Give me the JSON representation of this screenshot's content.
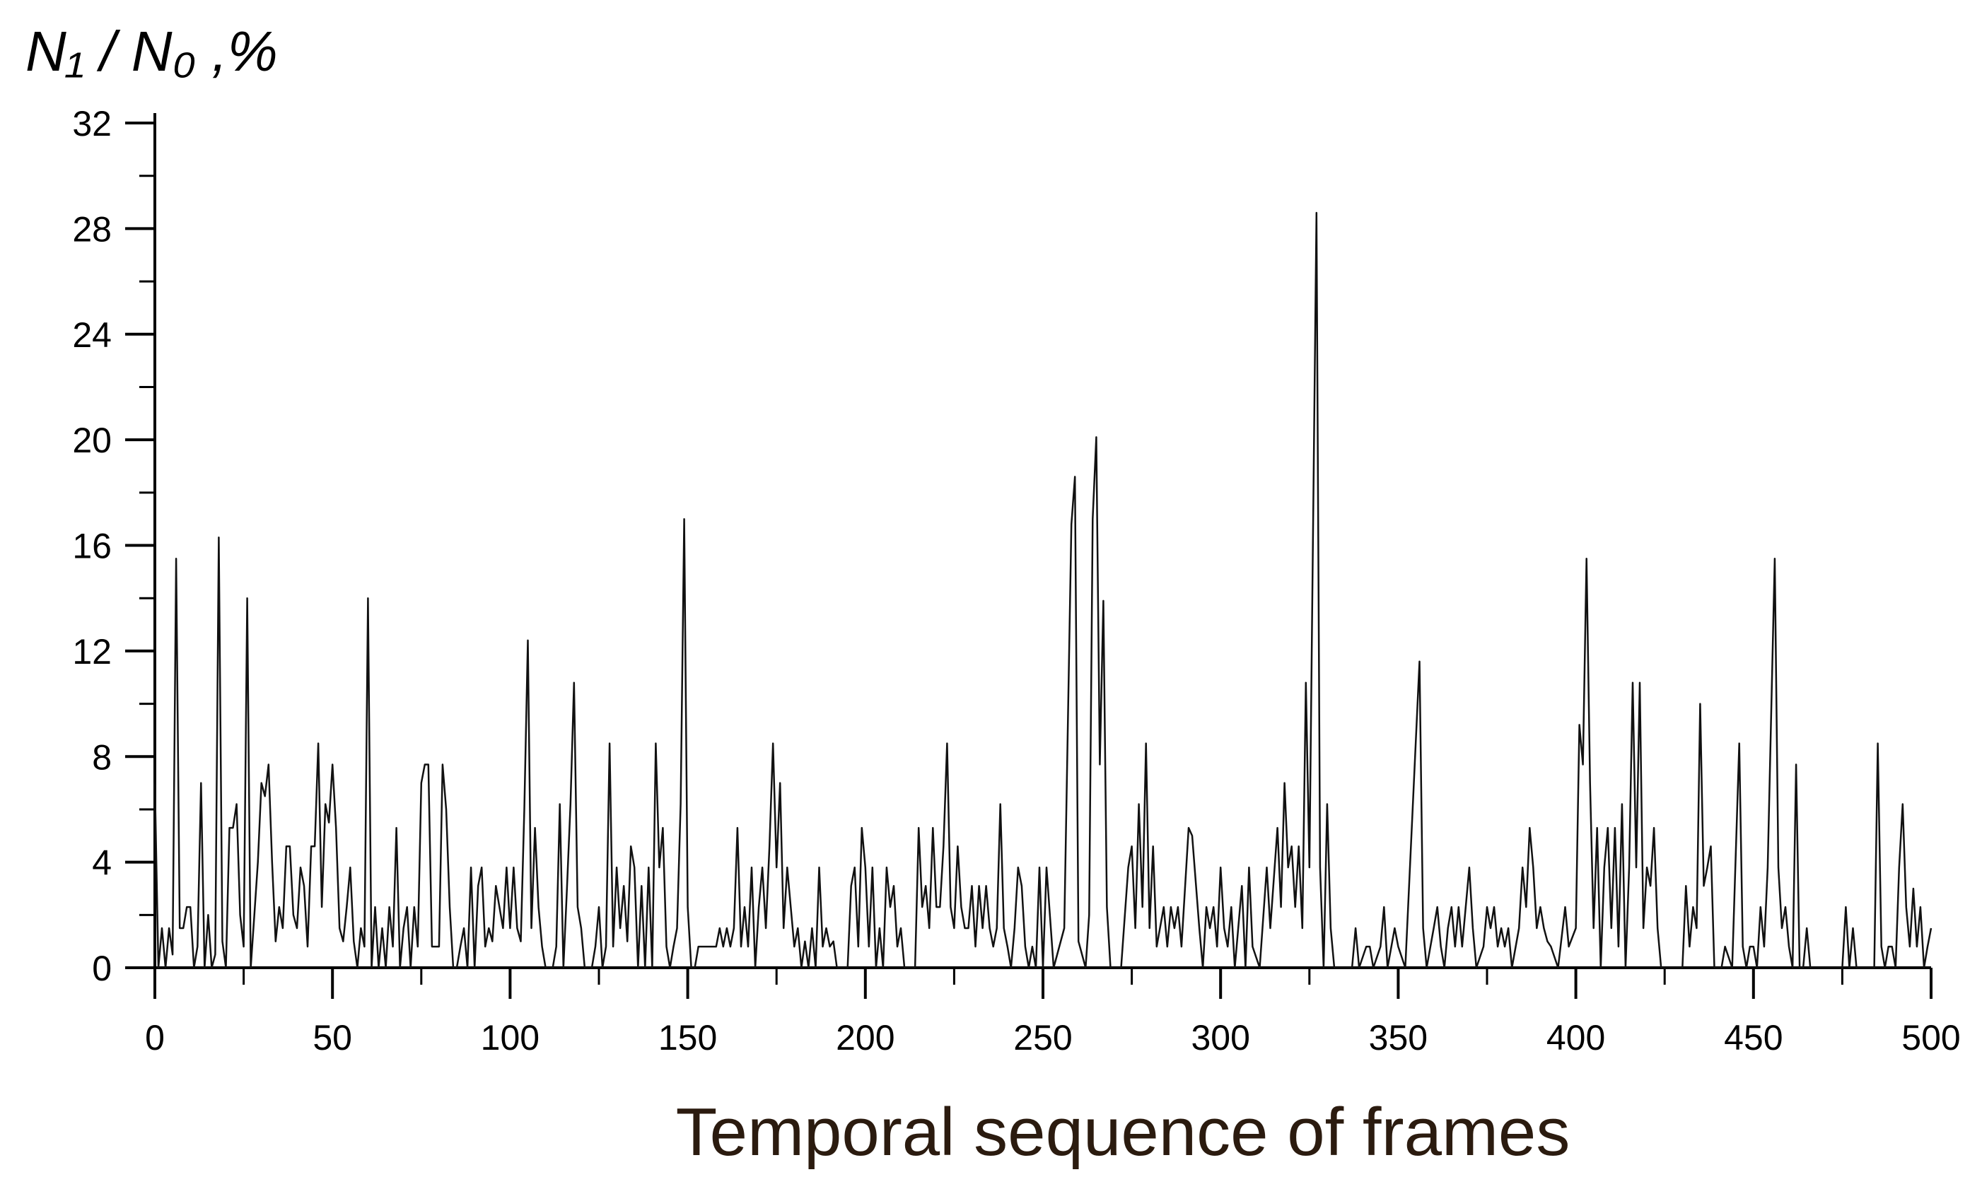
{
  "chart_data": {
    "type": "line",
    "ylabel": "N₁ / N₀ ,%",
    "xlabel": "Temporal sequence of frames",
    "color": "#111111",
    "xlim": [
      0,
      500
    ],
    "xticks": [
      0,
      50,
      100,
      150,
      200,
      250,
      300,
      350,
      400,
      450,
      500
    ],
    "xminorticks": [
      25,
      75,
      125,
      175,
      225,
      275,
      325,
      375,
      425,
      475
    ],
    "ylim": [
      0,
      32
    ],
    "yticks": [
      0,
      4,
      8,
      12,
      16,
      20,
      24,
      28,
      32
    ],
    "yminorticks": [
      2,
      6,
      10,
      14,
      18,
      22,
      26,
      30
    ],
    "x": [
      0,
      1,
      2,
      3,
      4,
      5,
      6,
      7,
      8,
      9,
      10,
      11,
      12,
      13,
      14,
      15,
      16,
      17,
      18,
      19,
      20,
      21,
      22,
      23,
      24,
      25,
      26,
      27,
      28,
      29,
      30,
      31,
      32,
      33,
      34,
      35,
      36,
      37,
      38,
      39,
      40,
      41,
      42,
      43,
      44,
      45,
      46,
      47,
      48,
      49,
      50,
      51,
      52,
      53,
      54,
      55,
      56,
      57,
      58,
      59,
      60,
      61,
      62,
      63,
      64,
      65,
      66,
      67,
      68,
      69,
      70,
      71,
      72,
      73,
      74,
      75,
      76,
      77,
      78,
      79,
      80,
      81,
      82,
      83,
      84,
      85,
      86,
      87,
      88,
      89,
      90,
      91,
      92,
      93,
      94,
      95,
      96,
      97,
      98,
      99,
      100,
      101,
      102,
      103,
      104,
      105,
      106,
      107,
      108,
      109,
      110,
      111,
      112,
      113,
      114,
      115,
      116,
      117,
      118,
      119,
      120,
      121,
      122,
      123,
      124,
      125,
      126,
      127,
      128,
      129,
      130,
      131,
      132,
      133,
      134,
      135,
      136,
      137,
      138,
      139,
      140,
      141,
      142,
      143,
      144,
      145,
      146,
      147,
      148,
      149,
      150,
      151,
      152,
      153,
      154,
      155,
      156,
      157,
      158,
      159,
      160,
      161,
      162,
      163,
      164,
      165,
      166,
      167,
      168,
      169,
      170,
      171,
      172,
      173,
      174,
      175,
      176,
      177,
      178,
      179,
      180,
      181,
      182,
      183,
      184,
      185,
      186,
      187,
      188,
      189,
      190,
      191,
      192,
      193,
      194,
      195,
      196,
      197,
      198,
      199,
      200,
      201,
      202,
      203,
      204,
      205,
      206,
      207,
      208,
      209,
      210,
      211,
      212,
      213,
      214,
      215,
      216,
      217,
      218,
      219,
      220,
      221,
      222,
      223,
      224,
      225,
      226,
      227,
      228,
      229,
      230,
      231,
      232,
      233,
      234,
      235,
      236,
      237,
      238,
      239,
      240,
      241,
      242,
      243,
      244,
      245,
      246,
      247,
      248,
      249,
      250,
      251,
      253,
      256,
      258,
      259,
      260,
      262,
      263,
      264,
      265,
      266,
      267,
      268,
      269,
      272,
      274,
      275,
      276,
      277,
      278,
      279,
      280,
      281,
      282,
      284,
      285,
      286,
      287,
      288,
      289,
      291,
      292,
      294,
      295,
      296,
      297,
      298,
      299,
      300,
      301,
      302,
      303,
      304,
      306,
      307,
      308,
      309,
      311,
      313,
      314,
      316,
      317,
      318,
      319,
      320,
      321,
      322,
      323,
      324,
      325,
      327,
      328,
      329,
      330,
      331,
      332,
      337,
      338,
      339,
      341,
      342,
      343,
      345,
      346,
      347,
      349,
      350,
      352,
      356,
      357,
      358,
      360,
      361,
      362,
      363,
      364,
      365,
      366,
      367,
      368,
      370,
      371,
      372,
      374,
      375,
      376,
      377,
      378,
      379,
      380,
      381,
      382,
      384,
      385,
      386,
      387,
      388,
      389,
      390,
      391,
      392,
      393,
      395,
      397,
      398,
      400,
      401,
      402,
      403,
      404,
      405,
      406,
      407,
      408,
      409,
      410,
      411,
      412,
      413,
      414,
      415,
      416,
      417,
      418,
      419,
      420,
      421,
      422,
      423,
      424,
      430,
      431,
      432,
      433,
      434,
      435,
      436,
      437,
      438,
      439,
      441,
      442,
      444,
      446,
      447,
      448,
      449,
      450,
      451,
      452,
      453,
      454,
      456,
      457,
      458,
      459,
      460,
      461,
      462,
      463,
      464,
      465,
      466,
      475,
      476,
      477,
      478,
      479,
      484,
      485,
      486,
      487,
      488,
      489,
      490,
      491,
      492,
      493,
      494,
      495,
      496,
      497,
      498,
      499,
      500
    ],
    "values": [
      7,
      0,
      1.5,
      0,
      1.5,
      0.5,
      15.5,
      1.5,
      1.5,
      2.3,
      2.3,
      0,
      0.8,
      7,
      0,
      2,
      0,
      0.5,
      16.3,
      1,
      0,
      5.3,
      5.3,
      6.2,
      2,
      0.8,
      14,
      0,
      2,
      4,
      7,
      6.5,
      7.7,
      4,
      1,
      2.3,
      1.5,
      4.6,
      4.6,
      2,
      1.5,
      3.8,
      3.1,
      0.8,
      4.6,
      4.6,
      8.5,
      2.3,
      6.2,
      5.5,
      7.7,
      5.3,
      1.5,
      1,
      2.3,
      3.8,
      1,
      0,
      1.5,
      0.8,
      14,
      0,
      2.3,
      0,
      1.5,
      0,
      2.3,
      0.8,
      5.3,
      0,
      1.5,
      2.3,
      0,
      2.3,
      0.8,
      7,
      7.7,
      7.7,
      0.8,
      0.8,
      0.8,
      7.7,
      6,
      2.3,
      0,
      0,
      0.8,
      1.5,
      0,
      3.8,
      0,
      3.1,
      3.8,
      0.8,
      1.5,
      1,
      3.1,
      2.3,
      1.5,
      3.8,
      1.5,
      3.8,
      1.5,
      1,
      6,
      12.4,
      1.5,
      5.3,
      2.3,
      0.8,
      0,
      0,
      0,
      0.8,
      6.2,
      0,
      3,
      6.2,
      10.8,
      2.3,
      1.5,
      0,
      0,
      0,
      0.8,
      2.3,
      0,
      0.8,
      8.5,
      0.8,
      3.8,
      1.5,
      3.1,
      1,
      4.6,
      3.8,
      0,
      3.1,
      0,
      3.8,
      0,
      8.5,
      3.8,
      5.3,
      0.8,
      0,
      0.8,
      1.5,
      6.2,
      17,
      2.3,
      0,
      0,
      0.8,
      0.8,
      0.8,
      0.8,
      0.8,
      0.8,
      1.5,
      0.8,
      1.5,
      0.8,
      1.5,
      5.3,
      0.8,
      2.3,
      0.8,
      3.8,
      0,
      2.3,
      3.8,
      1.5,
      4.6,
      8.5,
      3.8,
      7,
      1.5,
      3.8,
      2.3,
      0.8,
      1.5,
      0,
      1,
      0,
      1.5,
      0,
      3.8,
      0.8,
      1.5,
      0.8,
      1,
      0,
      0,
      0,
      0,
      3.1,
      3.8,
      0.8,
      5.3,
      3.8,
      0.8,
      3.8,
      0,
      1.5,
      0,
      3.8,
      2.3,
      3.1,
      0.8,
      1.5,
      0,
      0,
      0,
      0,
      5.3,
      2.3,
      3.1,
      1.5,
      5.3,
      2.3,
      2.3,
      4.6,
      8.5,
      2.3,
      1.5,
      4.6,
      2.3,
      1.5,
      1.5,
      3.1,
      0.8,
      3.1,
      1.5,
      3.1,
      1.5,
      0.8,
      1.5,
      6.2,
      1.5,
      0.8,
      0,
      1.5,
      3.8,
      3.1,
      0.8,
      0,
      0.8,
      0,
      3.8,
      0,
      3.8,
      0,
      1.5,
      16.8,
      18.6,
      1,
      0,
      2,
      17,
      20.1,
      7.7,
      13.9,
      2.3,
      0,
      0,
      3.8,
      4.6,
      1.5,
      6.2,
      2.3,
      8.5,
      1.5,
      4.6,
      0.8,
      2.3,
      0.8,
      2.3,
      1.5,
      2.3,
      0.8,
      5.3,
      5,
      1.5,
      0,
      2.3,
      1.5,
      2.3,
      0.8,
      3.8,
      1.5,
      0.8,
      2.3,
      0,
      3.1,
      0,
      3.8,
      0.8,
      0,
      3.8,
      1.5,
      5.3,
      2.3,
      7,
      3.8,
      4.6,
      2.3,
      4.6,
      1.5,
      10.8,
      3.8,
      28.6,
      3.8,
      0,
      6.2,
      1.5,
      0,
      0,
      1.5,
      0,
      0.8,
      0.8,
      0,
      0.8,
      2.3,
      0,
      1.5,
      0.8,
      0,
      11.6,
      1.5,
      0,
      1.5,
      2.3,
      0.8,
      0,
      1.5,
      2.3,
      0.8,
      2.3,
      0.8,
      3.8,
      1.5,
      0,
      0.8,
      2.3,
      1.5,
      2.3,
      0.8,
      1.5,
      0.8,
      1.5,
      0,
      1.5,
      3.8,
      2.3,
      5.3,
      3.8,
      1.5,
      2.3,
      1.5,
      1,
      0.8,
      0,
      2.3,
      0.8,
      1.5,
      9.2,
      7.7,
      15.5,
      7,
      1.5,
      5.3,
      0,
      3.8,
      5.3,
      1.5,
      5.3,
      0.8,
      6.2,
      0,
      3.8,
      10.8,
      3.8,
      10.8,
      1.5,
      3.8,
      3.1,
      5.3,
      1.5,
      0,
      0,
      3.1,
      0.8,
      2.3,
      1.5,
      10,
      3.1,
      3.8,
      4.6,
      0,
      0,
      0.8,
      0,
      8.5,
      0.8,
      0,
      0.8,
      0.8,
      0,
      2.3,
      0.8,
      3.8,
      15.5,
      3.8,
      1.5,
      2.3,
      0.8,
      0,
      7.7,
      0,
      0,
      1.5,
      0,
      0,
      2.3,
      0,
      1.5,
      0,
      0,
      8.5,
      0.8,
      0,
      0.8,
      0.8,
      0,
      3.8,
      6.2,
      2.3,
      0.8,
      3,
      0.8,
      2.3,
      0,
      0.8,
      1.5
    ]
  }
}
